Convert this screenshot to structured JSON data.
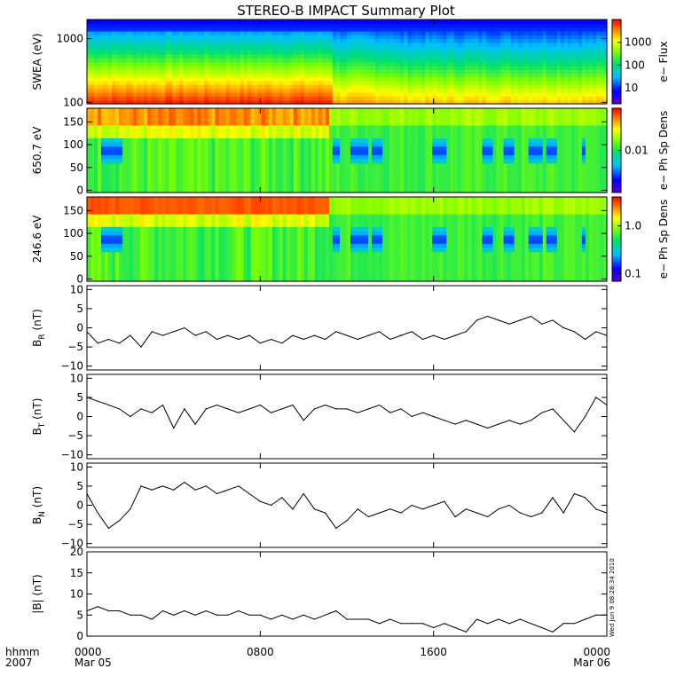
{
  "title": "STEREO-B IMPACT Summary Plot",
  "corner_text": [
    "hhmm",
    "2007"
  ],
  "side_stamp": "Wed Jun  9 08:28:34 2010",
  "time_axis": {
    "ticks": [
      {
        "t": 0,
        "label": "0000",
        "sublabel": "Mar 05"
      },
      {
        "t": 8,
        "label": "0800",
        "sublabel": ""
      },
      {
        "t": 16,
        "label": "1600",
        "sublabel": ""
      },
      {
        "t": 24,
        "label": "0000",
        "sublabel": "Mar 06"
      }
    ],
    "range_hours": [
      0,
      24
    ]
  },
  "colors": {
    "line": "#000000",
    "background": "#ffffff",
    "frame": "#000000"
  },
  "chart_data": [
    {
      "type": "heatmap",
      "id": "swea",
      "ylabel": "SWEA (eV)",
      "yscale": "log",
      "ylim": [
        95,
        2000
      ],
      "yticks": [
        100,
        1000
      ],
      "ytick_labels": [
        "100",
        "1000"
      ],
      "colorbar": {
        "label": "e− Flux",
        "scale": "log",
        "range": [
          2,
          10000
        ],
        "ticks": [
          10,
          100,
          1000
        ],
        "tick_labels": [
          "10",
          "100",
          "1000"
        ]
      },
      "description_values": {
        "low_energy_flux_before_1115": 7000,
        "low_energy_flux_after_1115": 3000,
        "high_energy_flux": 5
      }
    },
    {
      "type": "heatmap",
      "id": "pad650",
      "ylabel": "650.7 eV",
      "ylim": [
        -5,
        180
      ],
      "yticks": [
        0,
        50,
        100,
        150
      ],
      "ytick_labels": [
        "0",
        "50",
        "100",
        "150"
      ],
      "colorbar": {
        "label": "e− Ph Sp Dens",
        "scale": "log",
        "range": [
          0.001,
          0.1
        ],
        "ticks": [
          0.01
        ],
        "tick_labels": [
          "0.01"
        ]
      }
    },
    {
      "type": "heatmap",
      "id": "pad246",
      "ylabel": "246.6 eV",
      "ylim": [
        -5,
        180
      ],
      "yticks": [
        0,
        50,
        100,
        150
      ],
      "ytick_labels": [
        "0",
        "50",
        "100",
        "150"
      ],
      "colorbar": {
        "label": "e− Ph Sp Dens",
        "scale": "log",
        "range": [
          0.07,
          4
        ],
        "ticks": [
          0.1,
          1.0
        ],
        "tick_labels": [
          "0.1",
          "1.0"
        ]
      }
    },
    {
      "type": "line",
      "id": "br",
      "ylabel": "B",
      "ylabel_sub": "R",
      "ylabel_unit": " (nT)",
      "ylim": [
        -11,
        11
      ],
      "yticks": [
        -10,
        -5,
        0,
        5,
        10
      ],
      "ytick_labels": [
        "−10",
        "−5",
        "0",
        "5",
        "10"
      ],
      "x": [
        0,
        0.5,
        1,
        1.5,
        2,
        2.5,
        3,
        3.5,
        4,
        4.5,
        5,
        5.5,
        6,
        6.5,
        7,
        7.5,
        8,
        8.5,
        9,
        9.5,
        10,
        10.5,
        11,
        11.5,
        12,
        12.5,
        13,
        13.5,
        14,
        14.5,
        15,
        15.5,
        16,
        16.5,
        17,
        17.5,
        18,
        18.5,
        19,
        19.5,
        20,
        20.5,
        21,
        21.5,
        22,
        22.5,
        23,
        23.5,
        24
      ],
      "y": [
        -1,
        -4,
        -3,
        -4,
        -2,
        -5,
        -1,
        -2,
        -1,
        0,
        -2,
        -1,
        -3,
        -2,
        -3,
        -2,
        -4,
        -3,
        -4,
        -2,
        -3,
        -2,
        -3,
        -1,
        -2,
        -3,
        -2,
        -1,
        -3,
        -2,
        -1,
        -3,
        -2,
        -3,
        -2,
        -1,
        2,
        3,
        2,
        1,
        2,
        3,
        1,
        2,
        0,
        -1,
        -3,
        -1,
        -2
      ]
    },
    {
      "type": "line",
      "id": "bt",
      "ylabel": "B",
      "ylabel_sub": "T",
      "ylabel_unit": " (nT)",
      "ylim": [
        -11,
        11
      ],
      "yticks": [
        -10,
        -5,
        0,
        5,
        10
      ],
      "ytick_labels": [
        "−10",
        "−5",
        "0",
        "5",
        "10"
      ],
      "x": [
        0,
        0.5,
        1,
        1.5,
        2,
        2.5,
        3,
        3.5,
        4,
        4.5,
        5,
        5.5,
        6,
        6.5,
        7,
        7.5,
        8,
        8.5,
        9,
        9.5,
        10,
        10.5,
        11,
        11.5,
        12,
        12.5,
        13,
        13.5,
        14,
        14.5,
        15,
        15.5,
        16,
        16.5,
        17,
        17.5,
        18,
        18.5,
        19,
        19.5,
        20,
        20.5,
        21,
        21.5,
        22,
        22.5,
        23,
        23.5,
        24
      ],
      "y": [
        5,
        4,
        3,
        2,
        0,
        2,
        1,
        3,
        -3,
        2,
        -2,
        2,
        3,
        2,
        1,
        2,
        3,
        1,
        2,
        3,
        -1,
        2,
        3,
        2,
        2,
        1,
        2,
        3,
        1,
        2,
        0,
        1,
        0,
        -1,
        -2,
        -1,
        -2,
        -3,
        -2,
        -1,
        -2,
        -1,
        1,
        2,
        -1,
        -4,
        0,
        5,
        3
      ]
    },
    {
      "type": "line",
      "id": "bn",
      "ylabel": "B",
      "ylabel_sub": "N",
      "ylabel_unit": " (nT)",
      "ylim": [
        -11,
        11
      ],
      "yticks": [
        -10,
        -5,
        0,
        5,
        10
      ],
      "ytick_labels": [
        "−10",
        "−5",
        "0",
        "5",
        "10"
      ],
      "x": [
        0,
        0.5,
        1,
        1.5,
        2,
        2.5,
        3,
        3.5,
        4,
        4.5,
        5,
        5.5,
        6,
        6.5,
        7,
        7.5,
        8,
        8.5,
        9,
        9.5,
        10,
        10.5,
        11,
        11.5,
        12,
        12.5,
        13,
        13.5,
        14,
        14.5,
        15,
        15.5,
        16,
        16.5,
        17,
        17.5,
        18,
        18.5,
        19,
        19.5,
        20,
        20.5,
        21,
        21.5,
        22,
        22.5,
        23,
        23.5,
        24
      ],
      "y": [
        3,
        -2,
        -6,
        -4,
        -1,
        5,
        4,
        5,
        4,
        6,
        4,
        5,
        3,
        4,
        5,
        3,
        1,
        0,
        2,
        -1,
        3,
        -1,
        -2,
        -6,
        -4,
        -1,
        -3,
        -2,
        -1,
        -2,
        0,
        -1,
        0,
        1,
        -3,
        -1,
        -2,
        -3,
        -1,
        0,
        -2,
        -3,
        -2,
        2,
        -2,
        3,
        2,
        -1,
        -2
      ]
    },
    {
      "type": "line",
      "id": "bmag",
      "ylabel": "|B| (nT)",
      "ylim": [
        0,
        20
      ],
      "yticks": [
        0,
        5,
        10,
        15,
        20
      ],
      "ytick_labels": [
        "0",
        "5",
        "10",
        "15",
        "20"
      ],
      "x": [
        0,
        0.5,
        1,
        1.5,
        2,
        2.5,
        3,
        3.5,
        4,
        4.5,
        5,
        5.5,
        6,
        6.5,
        7,
        7.5,
        8,
        8.5,
        9,
        9.5,
        10,
        10.5,
        11,
        11.5,
        12,
        12.5,
        13,
        13.5,
        14,
        14.5,
        15,
        15.5,
        16,
        16.5,
        17,
        17.5,
        18,
        18.5,
        19,
        19.5,
        20,
        20.5,
        21,
        21.5,
        22,
        22.5,
        23,
        23.5,
        24
      ],
      "y": [
        6,
        7,
        6,
        6,
        5,
        5,
        4,
        6,
        5,
        6,
        5,
        6,
        5,
        5,
        6,
        5,
        5,
        4,
        5,
        4,
        5,
        4,
        5,
        6,
        4,
        4,
        4,
        3,
        4,
        3,
        3,
        3,
        2,
        3,
        2,
        1,
        4,
        3,
        4,
        3,
        4,
        3,
        2,
        1,
        3,
        3,
        4,
        5,
        5
      ]
    }
  ]
}
